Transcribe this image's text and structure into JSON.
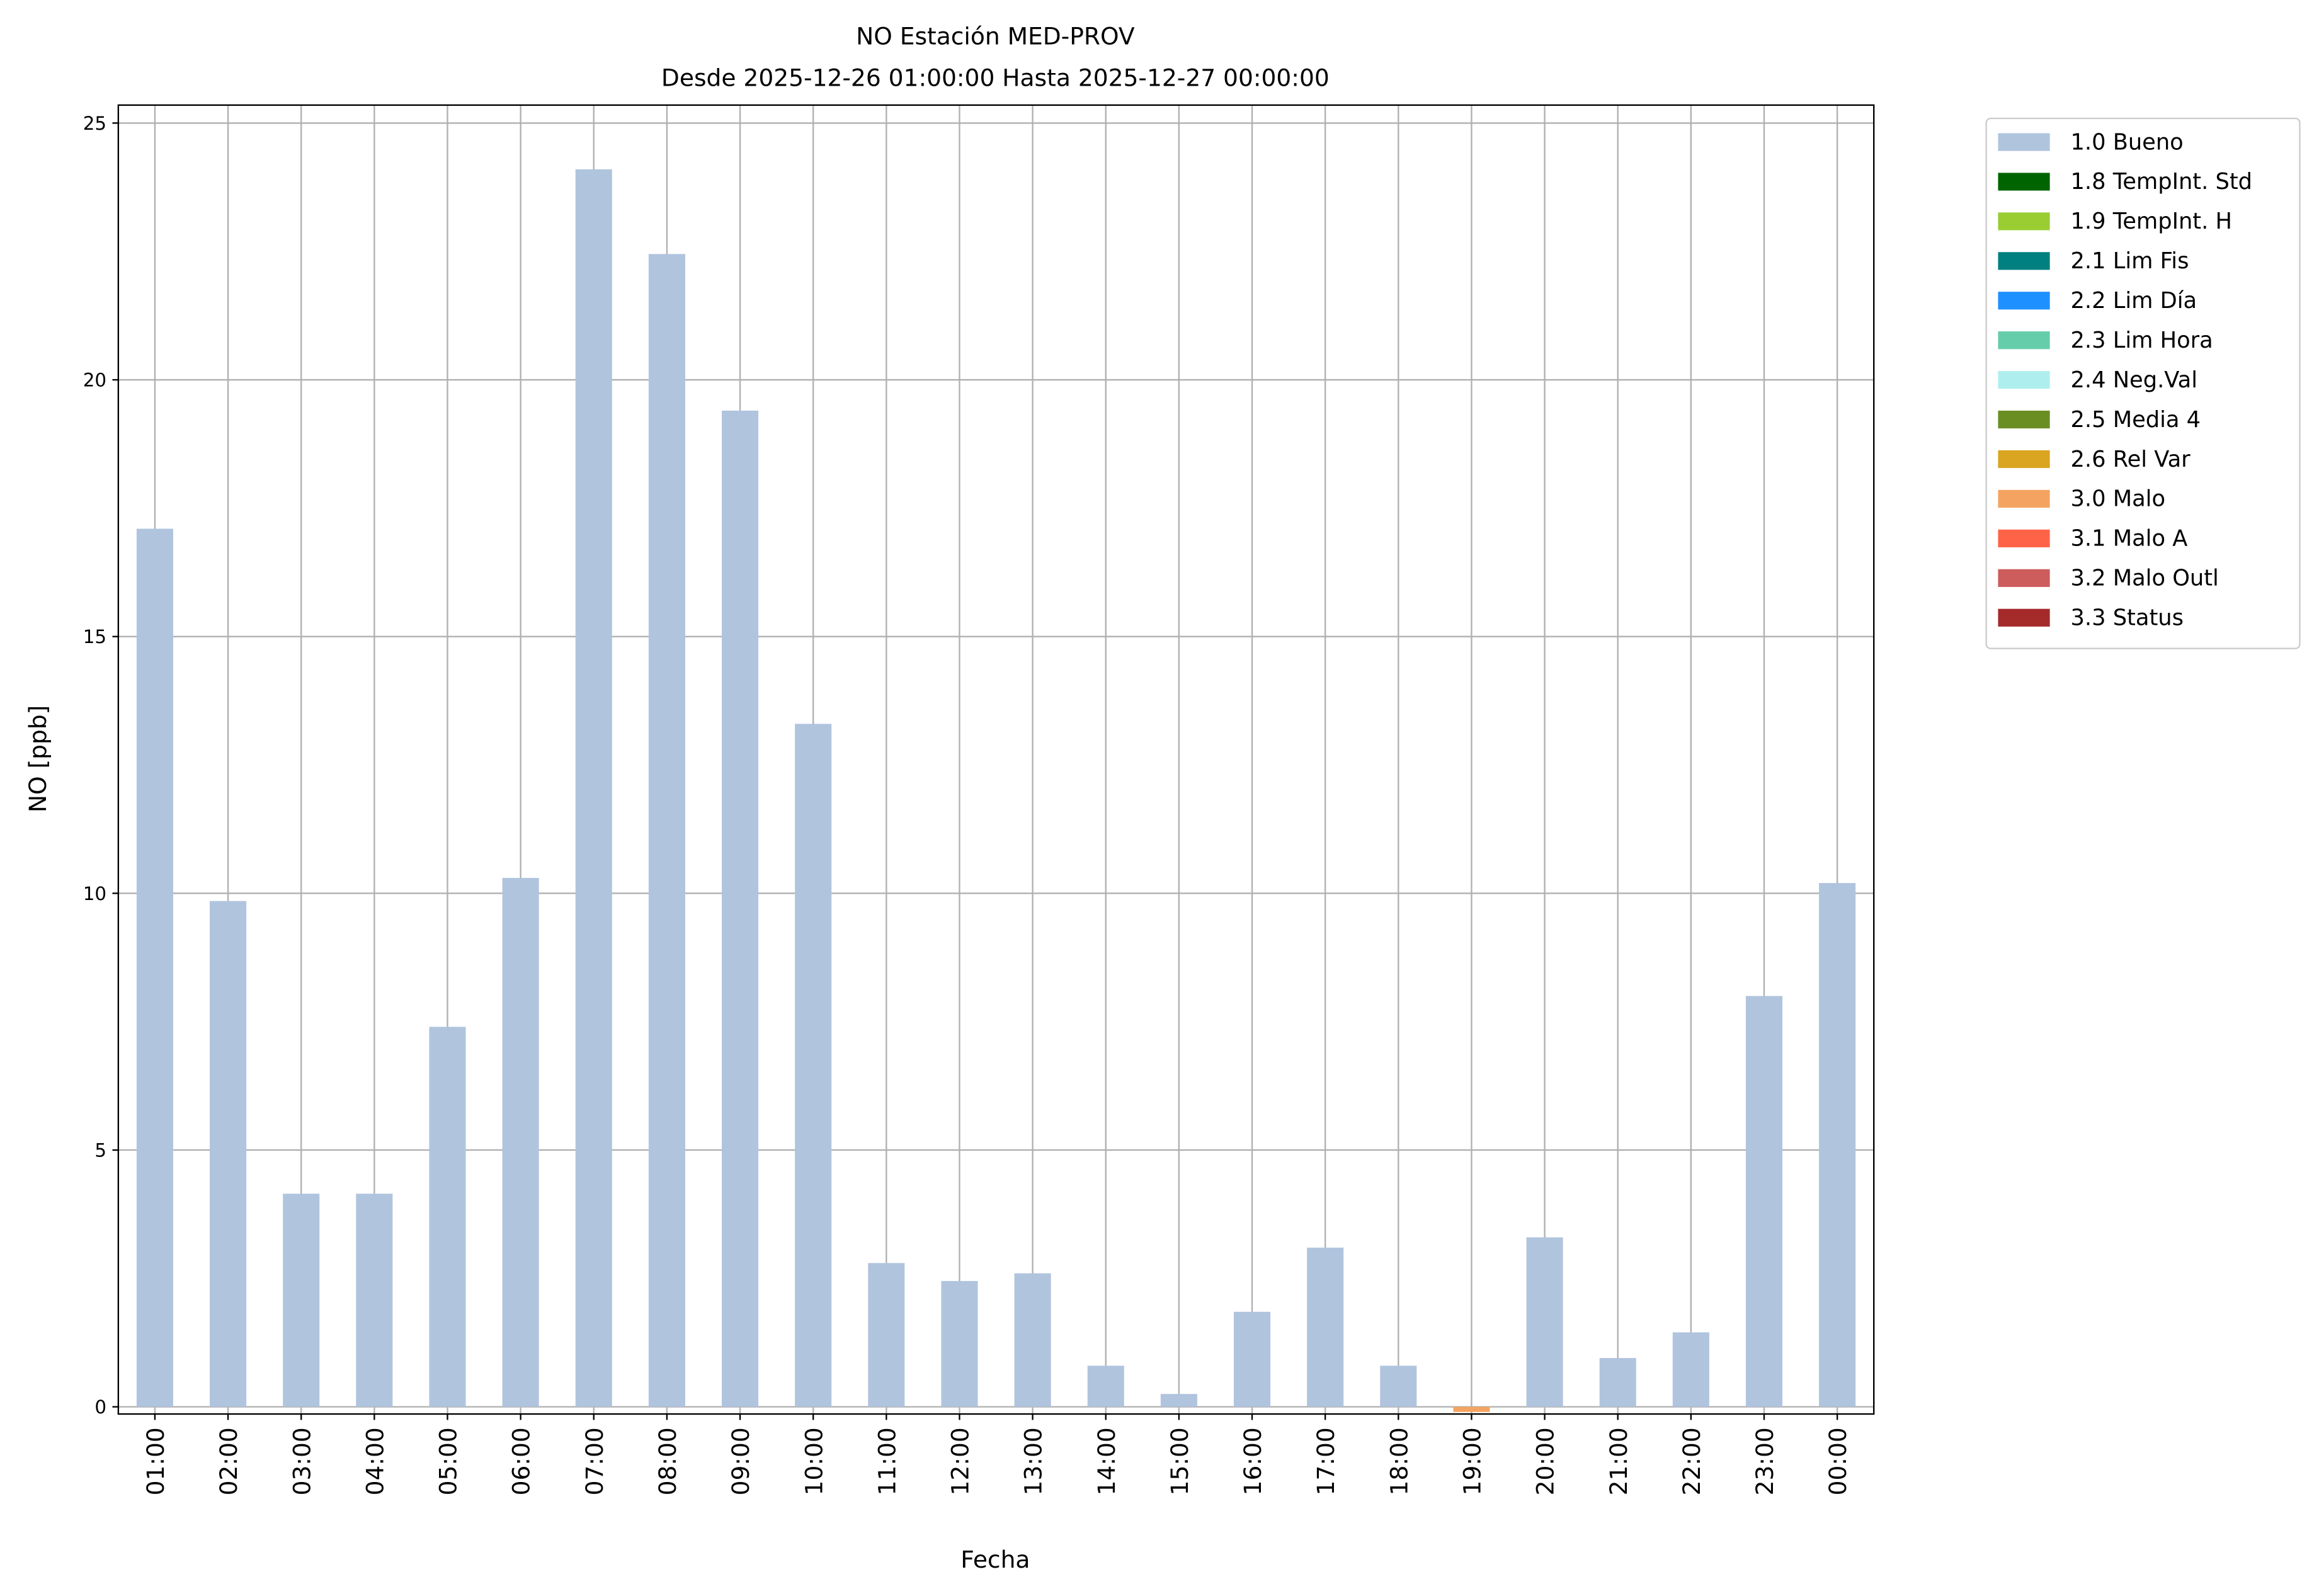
{
  "chart_data": {
    "type": "stacked_bar",
    "title": "NO Estación MED-PROV",
    "subtitle": "Desde 2025-12-26 01:00:00 Hasta 2025-12-27 00:00:00",
    "xlabel": "Fecha",
    "ylabel": "NO [ppb]",
    "categories": [
      "01:00",
      "02:00",
      "03:00",
      "04:00",
      "05:00",
      "06:00",
      "07:00",
      "08:00",
      "09:00",
      "10:00",
      "11:00",
      "12:00",
      "13:00",
      "14:00",
      "15:00",
      "16:00",
      "17:00",
      "18:00",
      "19:00",
      "20:00",
      "21:00",
      "22:00",
      "23:00",
      "00:00"
    ],
    "series": [
      {
        "name": "1.0 Bueno",
        "color": "#b0c4de",
        "values": [
          17.1,
          9.85,
          4.15,
          4.15,
          7.4,
          10.3,
          24.1,
          22.45,
          19.4,
          13.3,
          2.8,
          2.45,
          2.6,
          0.8,
          0.25,
          1.85,
          3.1,
          0.8,
          null,
          3.3,
          0.95,
          1.45,
          8.0,
          10.2
        ]
      },
      {
        "name": "1.8 TempInt. Std",
        "color": "#006400",
        "values": [
          null,
          null,
          null,
          null,
          null,
          null,
          null,
          null,
          null,
          null,
          null,
          null,
          null,
          null,
          null,
          null,
          null,
          null,
          null,
          null,
          null,
          null,
          null,
          null
        ]
      },
      {
        "name": "1.9 TempInt. H",
        "color": "#9acd32",
        "values": [
          null,
          null,
          null,
          null,
          null,
          null,
          null,
          null,
          null,
          null,
          null,
          null,
          null,
          null,
          null,
          null,
          null,
          null,
          null,
          null,
          null,
          null,
          null,
          null
        ]
      },
      {
        "name": "2.1 Lim Fis",
        "color": "#008080",
        "values": [
          null,
          null,
          null,
          null,
          null,
          null,
          null,
          null,
          null,
          null,
          null,
          null,
          null,
          null,
          null,
          null,
          null,
          null,
          null,
          null,
          null,
          null,
          null,
          null
        ]
      },
      {
        "name": "2.2 Lim Día",
        "color": "#1e90ff",
        "values": [
          null,
          null,
          null,
          null,
          null,
          null,
          null,
          null,
          null,
          null,
          null,
          null,
          null,
          null,
          null,
          null,
          null,
          null,
          null,
          null,
          null,
          null,
          null,
          null
        ]
      },
      {
        "name": "2.3 Lim Hora",
        "color": "#66cdaa",
        "values": [
          null,
          null,
          null,
          null,
          null,
          null,
          null,
          null,
          null,
          null,
          null,
          null,
          null,
          null,
          null,
          null,
          null,
          null,
          null,
          null,
          null,
          null,
          null,
          null
        ]
      },
      {
        "name": "2.4 Neg.Val",
        "color": "#afeeee",
        "values": [
          null,
          null,
          null,
          null,
          null,
          null,
          null,
          null,
          null,
          null,
          null,
          null,
          null,
          null,
          null,
          null,
          null,
          null,
          null,
          null,
          null,
          null,
          null,
          null
        ]
      },
      {
        "name": "2.5 Media 4",
        "color": "#6b8e23",
        "values": [
          null,
          null,
          null,
          null,
          null,
          null,
          null,
          null,
          null,
          null,
          null,
          null,
          null,
          null,
          null,
          null,
          null,
          null,
          null,
          null,
          null,
          null,
          null,
          null
        ]
      },
      {
        "name": "2.6 Rel Var",
        "color": "#daa520",
        "values": [
          null,
          null,
          null,
          null,
          null,
          null,
          null,
          null,
          null,
          null,
          null,
          null,
          null,
          null,
          null,
          null,
          null,
          null,
          null,
          null,
          null,
          null,
          null,
          null
        ]
      },
      {
        "name": "3.0 Malo",
        "color": "#f4a460",
        "values": [
          null,
          null,
          null,
          null,
          null,
          null,
          null,
          null,
          null,
          null,
          null,
          null,
          null,
          null,
          null,
          null,
          null,
          null,
          -0.1,
          null,
          null,
          null,
          null,
          null
        ]
      },
      {
        "name": "3.1 Malo A",
        "color": "#ff6347",
        "values": [
          null,
          null,
          null,
          null,
          null,
          null,
          null,
          null,
          null,
          null,
          null,
          null,
          null,
          null,
          null,
          null,
          null,
          null,
          null,
          null,
          null,
          null,
          null,
          null
        ]
      },
      {
        "name": "3.2 Malo Outl",
        "color": "#cd5c5c",
        "values": [
          null,
          null,
          null,
          null,
          null,
          null,
          null,
          null,
          null,
          null,
          null,
          null,
          null,
          null,
          null,
          null,
          null,
          null,
          null,
          null,
          null,
          null,
          null,
          null
        ]
      },
      {
        "name": "3.3 Status",
        "color": "#a52a2a",
        "values": [
          null,
          null,
          null,
          null,
          null,
          null,
          null,
          null,
          null,
          null,
          null,
          null,
          null,
          null,
          null,
          null,
          null,
          null,
          null,
          null,
          null,
          null,
          null,
          null
        ]
      }
    ],
    "ylim": [
      -0.14,
      25.35
    ],
    "yticks": [
      0,
      5,
      10,
      15,
      20,
      25
    ],
    "grid": true,
    "legend": "outside right"
  }
}
